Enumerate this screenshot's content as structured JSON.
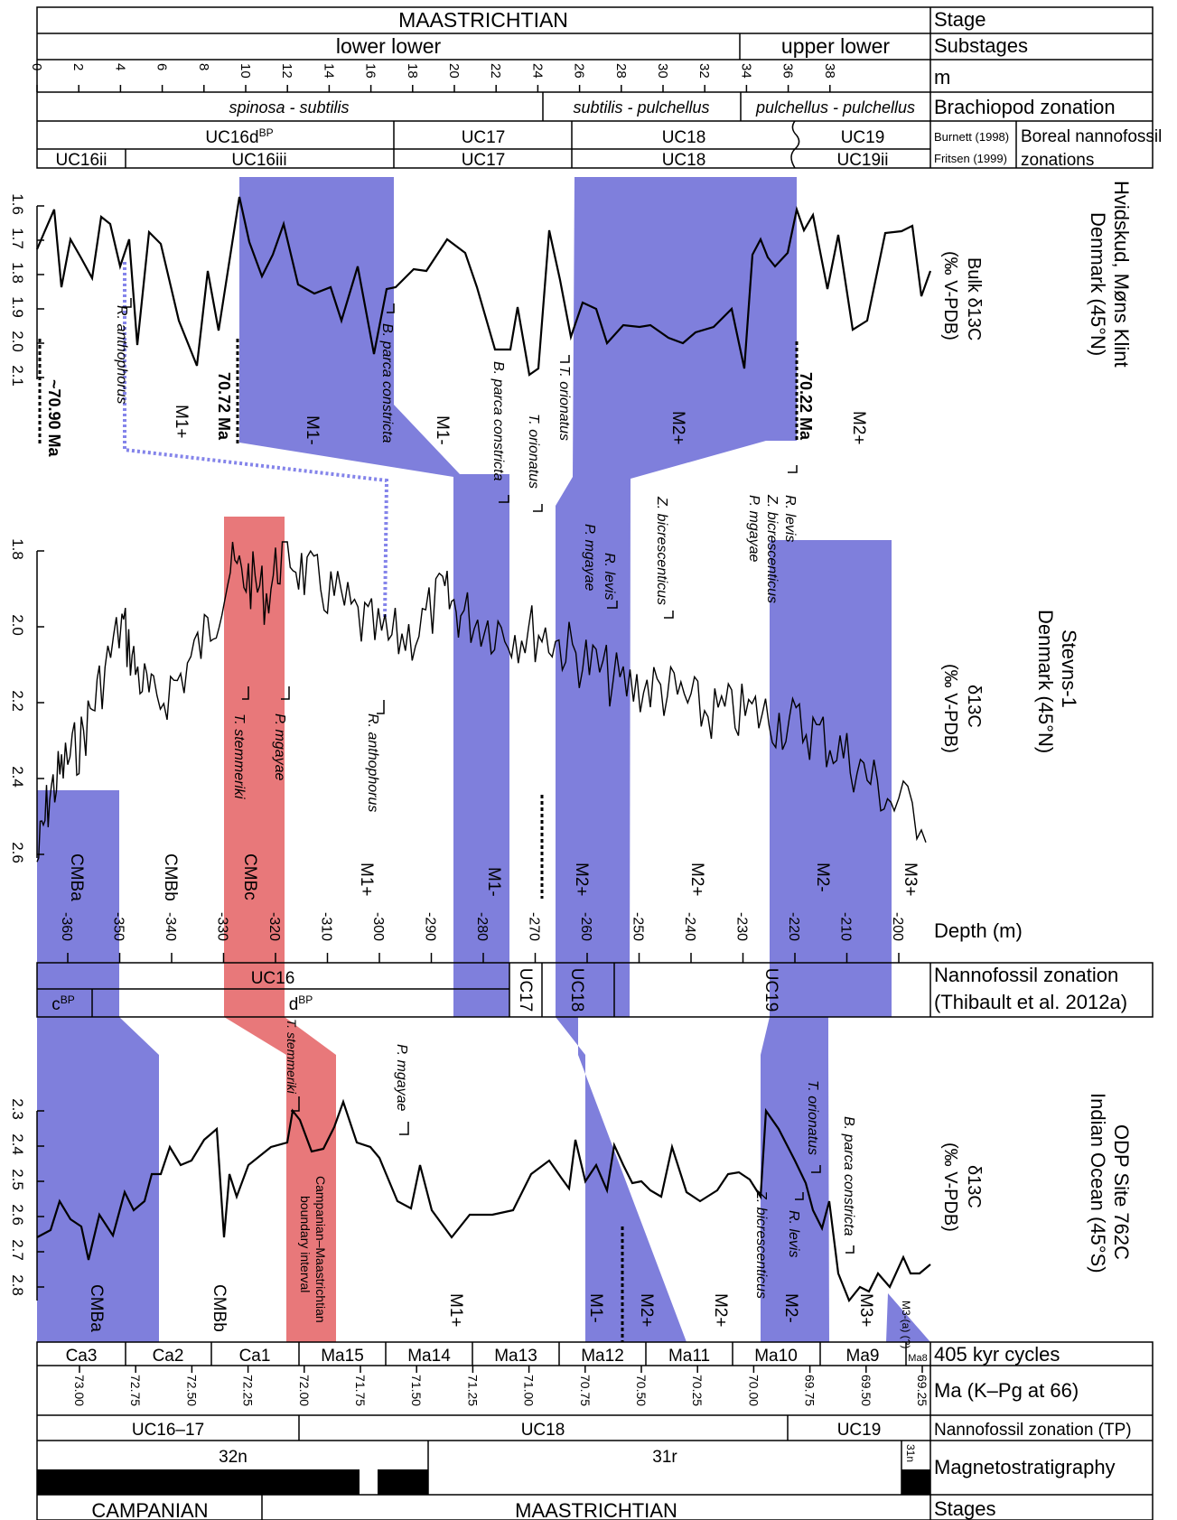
{
  "header": {
    "stage": "MAASTRICHTIAN",
    "stage_label": "Stage",
    "substage_left": "lower lower",
    "substage_right": "upper lower",
    "substages_label": "Substages",
    "m_label": "m",
    "m_ticks": [
      "0",
      "2",
      "4",
      "6",
      "8",
      "10",
      "12",
      "14",
      "16",
      "18",
      "20",
      "22",
      "24",
      "26",
      "28",
      "30",
      "32",
      "34",
      "36",
      "38"
    ],
    "brach_zones": [
      "spinosa - subtilis",
      "subtilis - pulchellus",
      "pulchellus - pulchellus"
    ],
    "brach_label": "Brachiopod zonation",
    "burnett_zones": [
      "UC16d",
      "UC17",
      "UC18",
      "UC19"
    ],
    "burnett_sup": "BP",
    "fritsen_zones": [
      "UC16ii",
      "UC16iii",
      "UC17",
      "UC18",
      "UC19ii"
    ],
    "burnett_ref": "Burnett (1998)",
    "fritsen_ref": "Fritsen (1999)",
    "boreal_label_1": "Boreal nannofossil",
    "boreal_label_2": "zonations"
  },
  "panel1": {
    "site": "Hvidskud, Møns Klint",
    "site2": "Denmark (45°N)",
    "ylabel": "Bulk δ13C",
    "yunit": "(‰ V-PDB)",
    "yticks": [
      "1.6",
      "1.7",
      "1.8",
      "1.9",
      "2.0",
      "2.1"
    ],
    "ages": [
      "~70.90 Ma",
      "70.72 Ma",
      "70.22 Ma"
    ],
    "zones": [
      "M1+",
      "M1-",
      "M1-",
      "M2+",
      "M2+"
    ],
    "bio": [
      "R. anthophorus",
      "B. parca constricta",
      "B. parca constricta",
      "T. orionatus",
      "T. orionatus",
      "R. levis",
      "Z. bicrescenticus",
      "P. mgayae",
      "Z. bicrescenticus",
      "R. levis",
      "P. mgayae"
    ]
  },
  "panel2": {
    "site": "Stevns-1",
    "site2": "Denmark (45°N)",
    "ylabel": "δ13C",
    "yunit": "(‰ V-PDB)",
    "yticks": [
      "1.8",
      "2.0",
      "2.2",
      "2.4",
      "2.6"
    ],
    "zones": [
      "CMBa",
      "CMBb",
      "CMBc",
      "M1+",
      "M1-",
      "M2+",
      "M2+",
      "M2-",
      "M3+"
    ],
    "bio": [
      "T. stemmeriki",
      "P. mgayae",
      "R. anthophorus"
    ],
    "depth_label": "Depth (m)",
    "depth_ticks": [
      "-360",
      "-350",
      "-340",
      "-330",
      "-320",
      "-310",
      "-300",
      "-290",
      "-280",
      "-270",
      "-260",
      "-250",
      "-240",
      "-230",
      "-220",
      "-210",
      "-200"
    ],
    "nanno_zones": [
      "UC16",
      "UC17",
      "UC18",
      "UC19",
      "c",
      "d"
    ],
    "nanno_sup": "BP",
    "nanno_label": "Nannofossil zonation",
    "nanno_ref": "(Thibault et al. 2012a)"
  },
  "panel3": {
    "site": "ODP Site 762C",
    "site2": "Indian Ocean (45°S)",
    "ylabel": "δ13C",
    "yunit": "(‰ V-PDB)",
    "yticks": [
      "2.3",
      "2.4",
      "2.5",
      "2.6",
      "2.7",
      "2.8"
    ],
    "zones": [
      "CMBa",
      "CMBb",
      "M1+",
      "M1-",
      "M2+",
      "M2+",
      "M2-",
      "M3+",
      "M3-(a) (?)"
    ],
    "boundary_text": [
      "Campanian–Maastrichtian",
      "boundary interval"
    ],
    "bio": [
      "T. stemmeriki",
      "P. mgayae",
      "T. orionatus",
      "R. levis",
      "Z. bicrescenticus",
      "B. parca constricta"
    ]
  },
  "footer": {
    "cycles": [
      "Ca3",
      "Ca2",
      "Ca1",
      "Ma15",
      "Ma14",
      "Ma13",
      "Ma12",
      "Ma11",
      "Ma10",
      "Ma9",
      "Ma8"
    ],
    "cycles_label": "405 kyr cycles",
    "ma_ticks": [
      "73.00",
      "72.75",
      "72.50",
      "72.25",
      "72.00",
      "71.75",
      "71.50",
      "71.25",
      "71.00",
      "70.75",
      "70.50",
      "70.25",
      "70.00",
      "69.75",
      "69.50",
      "69.25"
    ],
    "ma_label": "Ma (K–Pg at 66)",
    "tp_zones": [
      "UC16–17",
      "UC18",
      "UC19"
    ],
    "tp_label": "Nannofossil zonation (TP)",
    "chrons": [
      "32n",
      "31r",
      "31n"
    ],
    "magneto_label": "Magnetostratigraphy",
    "stages": [
      "CAMPANIAN",
      "MAASTRICHTIAN"
    ],
    "stages_label": "Stages"
  },
  "colors": {
    "blue": "#7f7fdc",
    "red": "#e8787a",
    "dashed": "#8484ea"
  }
}
